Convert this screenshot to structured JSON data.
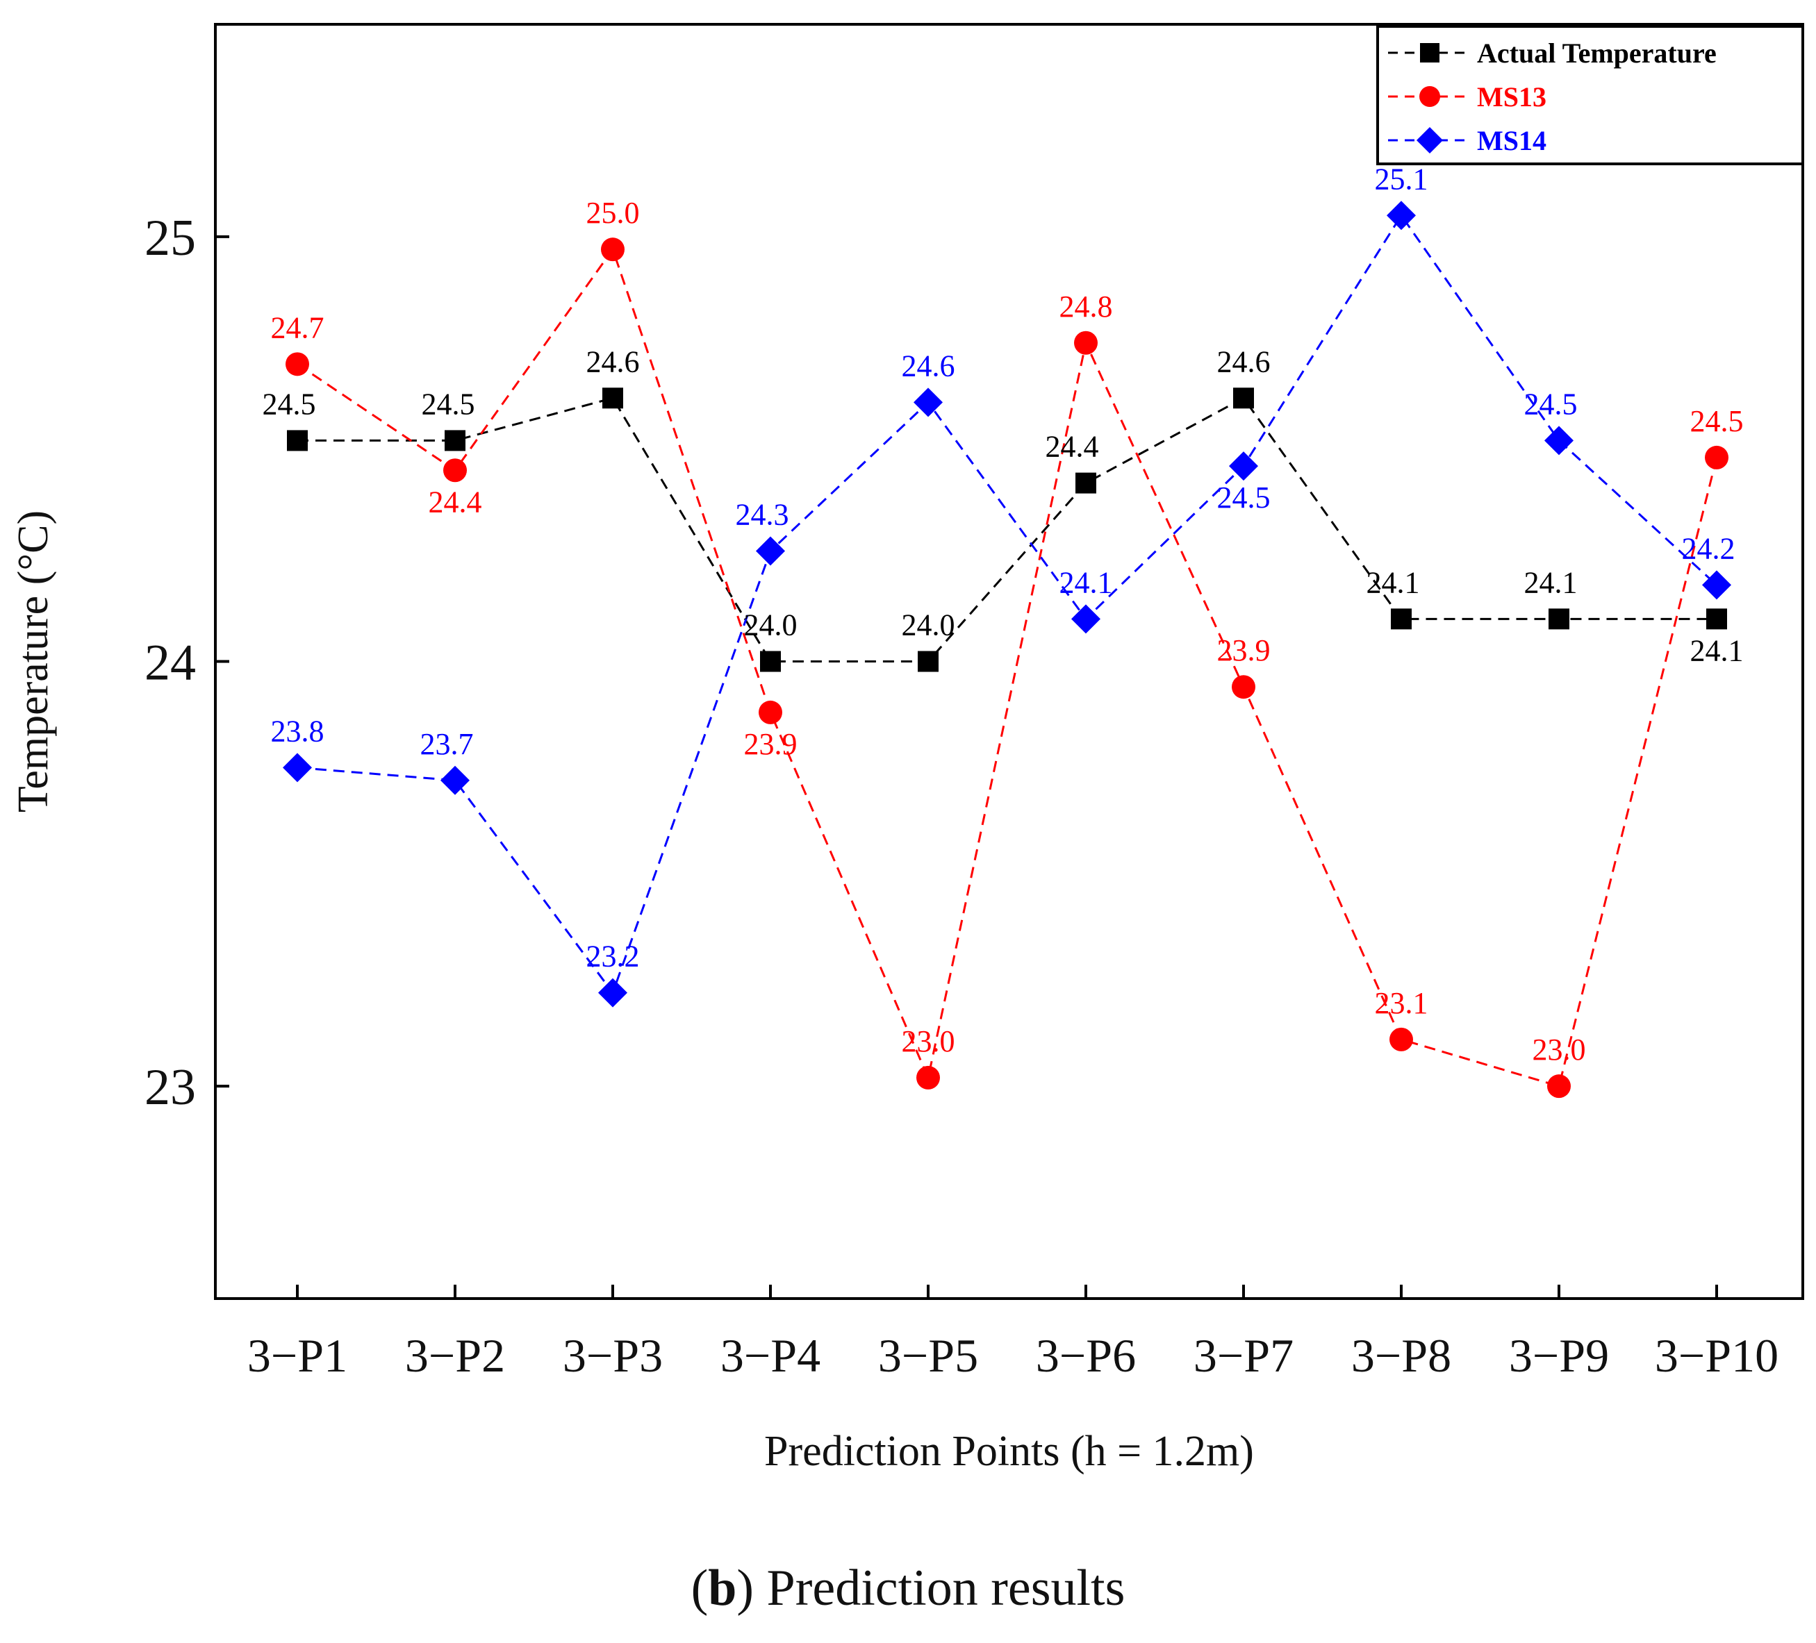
{
  "chart_data": {
    "type": "line",
    "title": "",
    "xlabel": "Prediction Points (h = 1.2m)",
    "ylabel": "Temperature (°C)",
    "ylim": [
      22.5,
      25.5
    ],
    "yticks": [
      23,
      24,
      25
    ],
    "categories": [
      "3−P1",
      "3−P2",
      "3−P3",
      "3−P4",
      "3−P5",
      "3−P6",
      "3−P7",
      "3−P8",
      "3−P9",
      "3−P10"
    ],
    "legend_position": "top-right",
    "series": [
      {
        "name": "Actual Temperature",
        "color": "#000000",
        "marker": "square",
        "values": [
          24.52,
          24.52,
          24.62,
          24.0,
          24.0,
          24.42,
          24.62,
          24.1,
          24.1,
          24.1
        ],
        "labels": [
          "24.5",
          "24.5",
          "24.6",
          "24.0",
          "24.0",
          "24.4",
          "24.6",
          "24.1",
          "24.1",
          "24.1"
        ]
      },
      {
        "name": "MS13",
        "color": "#ff0000",
        "marker": "circle",
        "values": [
          24.7,
          24.45,
          24.97,
          23.88,
          23.02,
          24.75,
          23.94,
          23.11,
          23.0,
          24.48
        ],
        "labels": [
          "24.7",
          "24.4",
          "25.0",
          "23.9",
          "23.0",
          "24.8",
          "23.9",
          "23.1",
          "23.0",
          "24.5"
        ]
      },
      {
        "name": "MS14",
        "color": "#0000ff",
        "marker": "diamond",
        "values": [
          23.75,
          23.72,
          23.22,
          24.26,
          24.61,
          24.1,
          24.46,
          25.05,
          24.52,
          24.18
        ],
        "labels": [
          "23.8",
          "23.7",
          "23.2",
          "24.3",
          "24.6",
          "24.1",
          "24.5",
          "25.1",
          "24.5",
          "24.2"
        ]
      }
    ]
  },
  "caption": {
    "letter": "b",
    "open": "(",
    "close": ")",
    "text": " Prediction results"
  }
}
